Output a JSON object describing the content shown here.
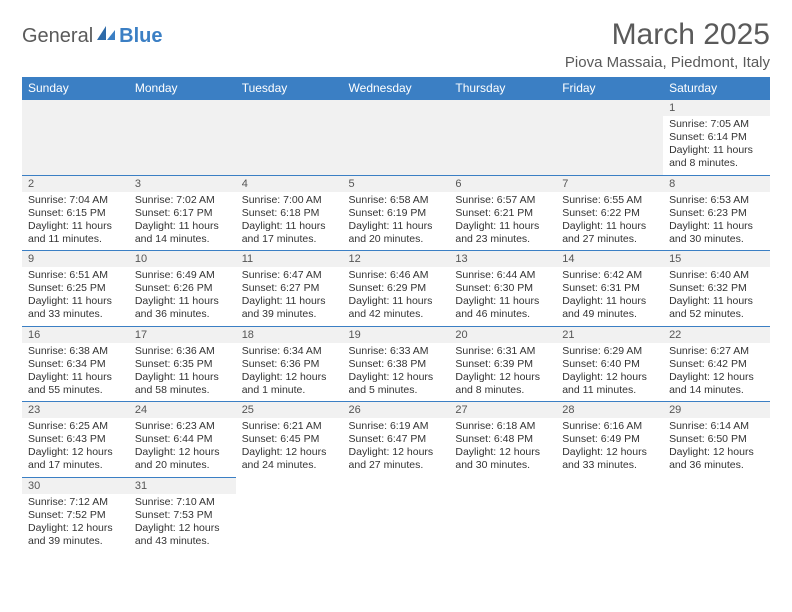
{
  "logo": {
    "text1": "General",
    "text2": "Blue"
  },
  "title": "March 2025",
  "location": "Piova Massaia, Piedmont, Italy",
  "colors": {
    "accent": "#3b7fc4",
    "header_text": "#ffffff",
    "bg": "#ffffff",
    "daynum_bg": "#f1f1f1"
  },
  "weekdays": [
    "Sunday",
    "Monday",
    "Tuesday",
    "Wednesday",
    "Thursday",
    "Friday",
    "Saturday"
  ],
  "weeks": [
    [
      null,
      null,
      null,
      null,
      null,
      null,
      {
        "n": "1",
        "sunrise": "7:05 AM",
        "sunset": "6:14 PM",
        "daylight": "11 hours and 8 minutes."
      }
    ],
    [
      {
        "n": "2",
        "sunrise": "7:04 AM",
        "sunset": "6:15 PM",
        "daylight": "11 hours and 11 minutes."
      },
      {
        "n": "3",
        "sunrise": "7:02 AM",
        "sunset": "6:17 PM",
        "daylight": "11 hours and 14 minutes."
      },
      {
        "n": "4",
        "sunrise": "7:00 AM",
        "sunset": "6:18 PM",
        "daylight": "11 hours and 17 minutes."
      },
      {
        "n": "5",
        "sunrise": "6:58 AM",
        "sunset": "6:19 PM",
        "daylight": "11 hours and 20 minutes."
      },
      {
        "n": "6",
        "sunrise": "6:57 AM",
        "sunset": "6:21 PM",
        "daylight": "11 hours and 23 minutes."
      },
      {
        "n": "7",
        "sunrise": "6:55 AM",
        "sunset": "6:22 PM",
        "daylight": "11 hours and 27 minutes."
      },
      {
        "n": "8",
        "sunrise": "6:53 AM",
        "sunset": "6:23 PM",
        "daylight": "11 hours and 30 minutes."
      }
    ],
    [
      {
        "n": "9",
        "sunrise": "6:51 AM",
        "sunset": "6:25 PM",
        "daylight": "11 hours and 33 minutes."
      },
      {
        "n": "10",
        "sunrise": "6:49 AM",
        "sunset": "6:26 PM",
        "daylight": "11 hours and 36 minutes."
      },
      {
        "n": "11",
        "sunrise": "6:47 AM",
        "sunset": "6:27 PM",
        "daylight": "11 hours and 39 minutes."
      },
      {
        "n": "12",
        "sunrise": "6:46 AM",
        "sunset": "6:29 PM",
        "daylight": "11 hours and 42 minutes."
      },
      {
        "n": "13",
        "sunrise": "6:44 AM",
        "sunset": "6:30 PM",
        "daylight": "11 hours and 46 minutes."
      },
      {
        "n": "14",
        "sunrise": "6:42 AM",
        "sunset": "6:31 PM",
        "daylight": "11 hours and 49 minutes."
      },
      {
        "n": "15",
        "sunrise": "6:40 AM",
        "sunset": "6:32 PM",
        "daylight": "11 hours and 52 minutes."
      }
    ],
    [
      {
        "n": "16",
        "sunrise": "6:38 AM",
        "sunset": "6:34 PM",
        "daylight": "11 hours and 55 minutes."
      },
      {
        "n": "17",
        "sunrise": "6:36 AM",
        "sunset": "6:35 PM",
        "daylight": "11 hours and 58 minutes."
      },
      {
        "n": "18",
        "sunrise": "6:34 AM",
        "sunset": "6:36 PM",
        "daylight": "12 hours and 1 minute."
      },
      {
        "n": "19",
        "sunrise": "6:33 AM",
        "sunset": "6:38 PM",
        "daylight": "12 hours and 5 minutes."
      },
      {
        "n": "20",
        "sunrise": "6:31 AM",
        "sunset": "6:39 PM",
        "daylight": "12 hours and 8 minutes."
      },
      {
        "n": "21",
        "sunrise": "6:29 AM",
        "sunset": "6:40 PM",
        "daylight": "12 hours and 11 minutes."
      },
      {
        "n": "22",
        "sunrise": "6:27 AM",
        "sunset": "6:42 PM",
        "daylight": "12 hours and 14 minutes."
      }
    ],
    [
      {
        "n": "23",
        "sunrise": "6:25 AM",
        "sunset": "6:43 PM",
        "daylight": "12 hours and 17 minutes."
      },
      {
        "n": "24",
        "sunrise": "6:23 AM",
        "sunset": "6:44 PM",
        "daylight": "12 hours and 20 minutes."
      },
      {
        "n": "25",
        "sunrise": "6:21 AM",
        "sunset": "6:45 PM",
        "daylight": "12 hours and 24 minutes."
      },
      {
        "n": "26",
        "sunrise": "6:19 AM",
        "sunset": "6:47 PM",
        "daylight": "12 hours and 27 minutes."
      },
      {
        "n": "27",
        "sunrise": "6:18 AM",
        "sunset": "6:48 PM",
        "daylight": "12 hours and 30 minutes."
      },
      {
        "n": "28",
        "sunrise": "6:16 AM",
        "sunset": "6:49 PM",
        "daylight": "12 hours and 33 minutes."
      },
      {
        "n": "29",
        "sunrise": "6:14 AM",
        "sunset": "6:50 PM",
        "daylight": "12 hours and 36 minutes."
      }
    ],
    [
      {
        "n": "30",
        "sunrise": "7:12 AM",
        "sunset": "7:52 PM",
        "daylight": "12 hours and 39 minutes."
      },
      {
        "n": "31",
        "sunrise": "7:10 AM",
        "sunset": "7:53 PM",
        "daylight": "12 hours and 43 minutes."
      },
      null,
      null,
      null,
      null,
      null
    ]
  ],
  "labels": {
    "sunrise": "Sunrise:",
    "sunset": "Sunset:",
    "daylight": "Daylight:"
  }
}
